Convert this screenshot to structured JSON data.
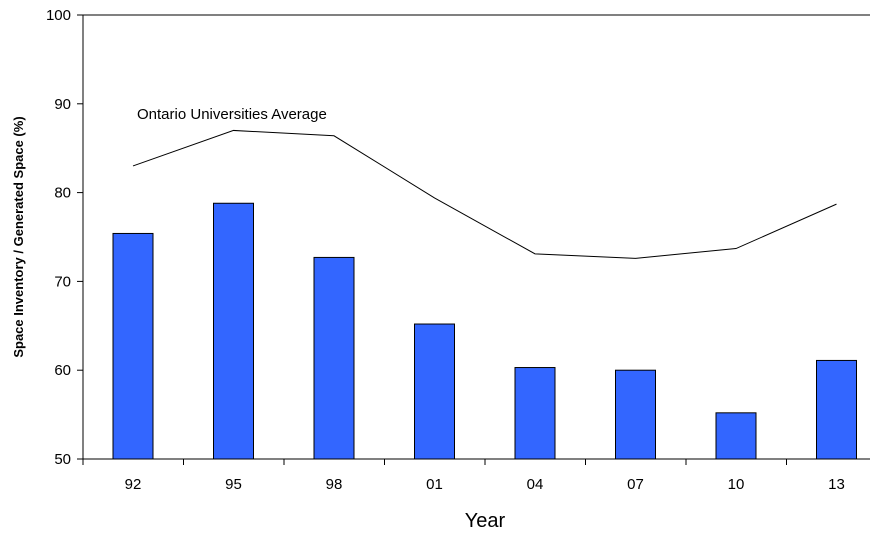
{
  "chart_data": {
    "type": "bar",
    "categories": [
      "92",
      "95",
      "98",
      "01",
      "04",
      "07",
      "10",
      "13"
    ],
    "series": [
      {
        "type": "bar",
        "values": [
          75.4,
          78.8,
          72.7,
          65.2,
          60.3,
          60.0,
          55.2,
          61.1
        ]
      },
      {
        "name": "Ontario Universities Average",
        "type": "line",
        "values": [
          83.0,
          87.0,
          86.4,
          79.4,
          73.1,
          72.6,
          73.7,
          78.7
        ]
      }
    ],
    "annotation": "Ontario Universities Average",
    "xlabel": "Year",
    "ylabel": "Space Inventory / Generated Space (%)",
    "ylim": [
      50,
      100
    ],
    "yticks": [
      50,
      60,
      70,
      80,
      90,
      100
    ],
    "bar_color": "#3366ff",
    "line_color": "#000000",
    "grid": false
  }
}
